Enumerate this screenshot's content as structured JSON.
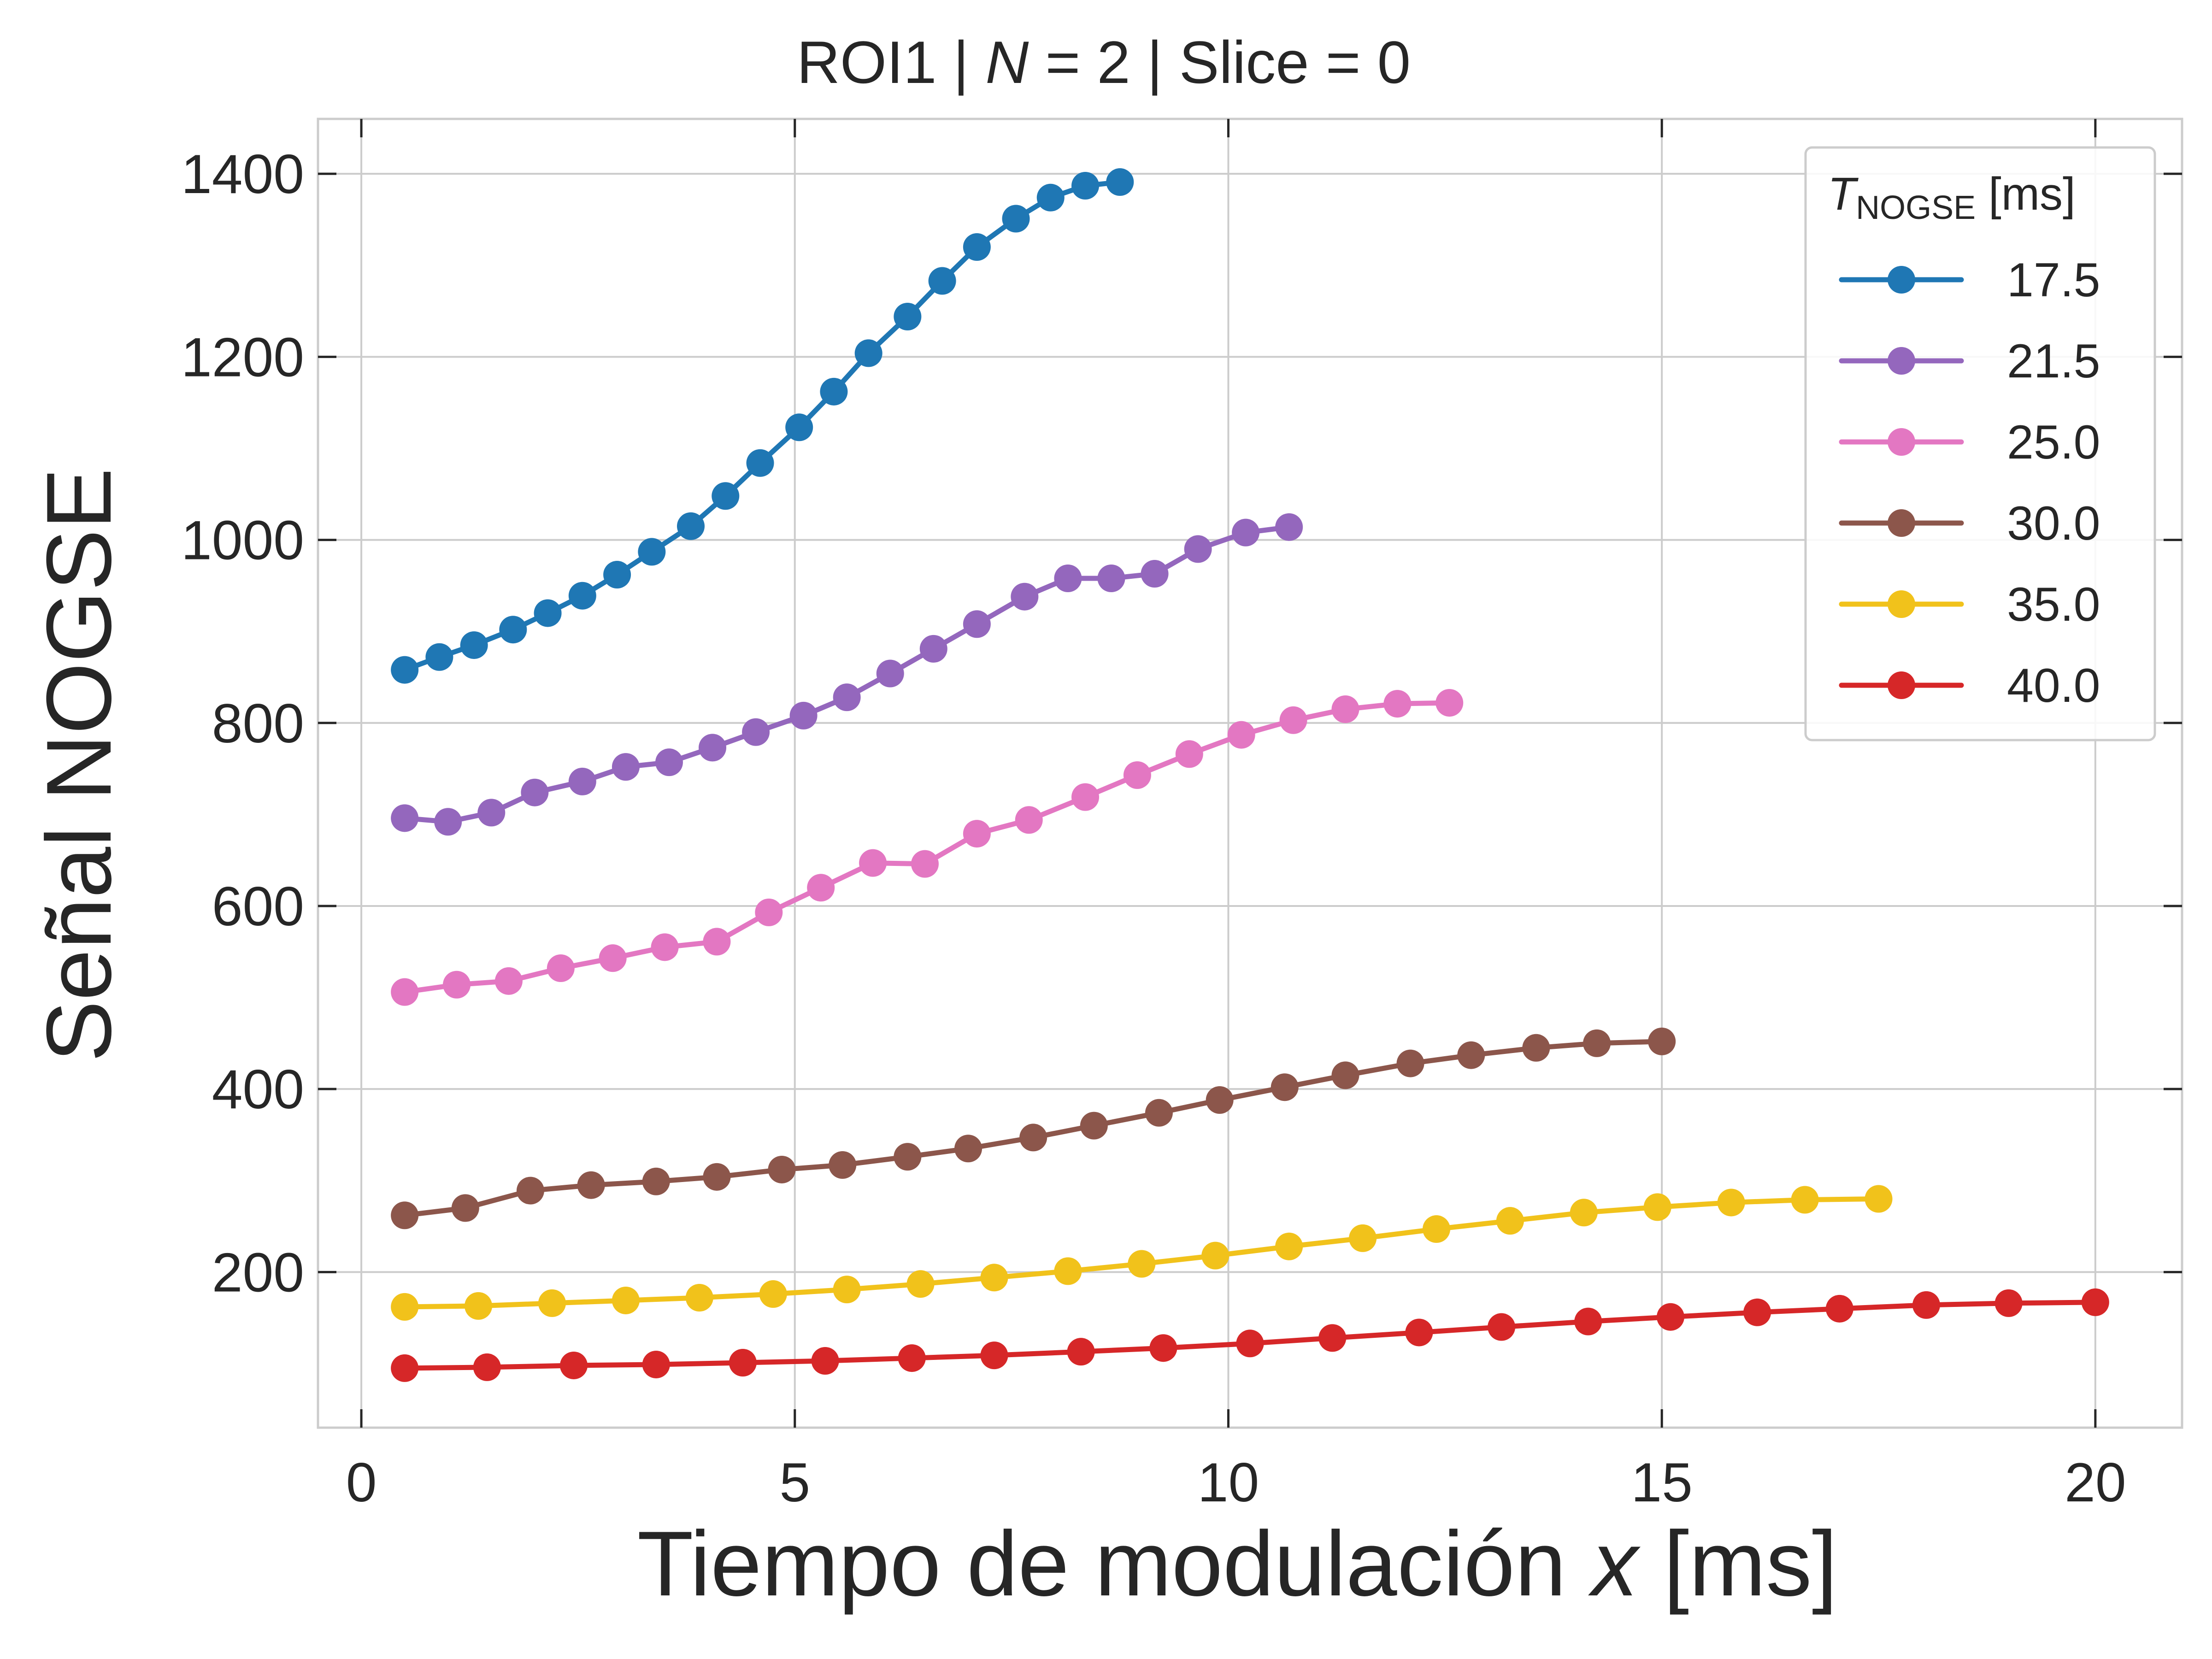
{
  "chart_data": {
    "type": "line",
    "title": {
      "prefix": "ROI1 | ",
      "italic": "N",
      "suffix": " = 2 | Slice = 0"
    },
    "xlabel": {
      "prefix": "Tiempo de modulación ",
      "italic": "x",
      "suffix": " [ms]"
    },
    "ylabel": "Señal NOGSE",
    "xlim": [
      -0.5,
      21.0
    ],
    "ylim": [
      30,
      1460
    ],
    "xticks": [
      0,
      5,
      10,
      15,
      20
    ],
    "yticks": [
      200,
      400,
      600,
      800,
      1000,
      1200,
      1400
    ],
    "grid": true,
    "legend": {
      "title_main": "T",
      "title_sub": "NOGSE",
      "title_unit": " [ms]",
      "placement": "top-right"
    },
    "series": [
      {
        "name": "17.5",
        "color": "#1f77b4",
        "x": [
          0.5,
          0.9,
          1.3,
          1.75,
          2.15,
          2.55,
          2.95,
          3.35,
          3.8,
          4.2,
          4.6,
          5.05,
          5.45,
          5.85,
          6.3,
          6.7,
          7.1,
          7.55,
          7.95,
          8.35,
          8.75
        ],
        "y": [
          858,
          872,
          885,
          902,
          920,
          939,
          962,
          987,
          1015,
          1048,
          1084,
          1123,
          1162,
          1204,
          1244,
          1283,
          1320,
          1351,
          1374,
          1387,
          1391
        ]
      },
      {
        "name": "21.5",
        "color": "#9467bd",
        "x": [
          0.5,
          1.0,
          1.5,
          2.0,
          2.55,
          3.05,
          3.55,
          4.05,
          4.55,
          5.1,
          5.6,
          6.1,
          6.6,
          7.1,
          7.65,
          8.15,
          8.65,
          9.15,
          9.65,
          10.2,
          10.7
        ],
        "y": [
          696,
          692,
          702,
          724,
          736,
          752,
          757,
          773,
          790,
          808,
          828,
          854,
          881,
          908,
          938,
          958,
          958,
          963,
          990,
          1008,
          1014
        ]
      },
      {
        "name": "25.0",
        "color": "#e377c2",
        "x": [
          0.5,
          1.1,
          1.7,
          2.3,
          2.9,
          3.5,
          4.1,
          4.7,
          5.3,
          5.9,
          6.5,
          7.1,
          7.7,
          8.35,
          8.95,
          9.55,
          10.15,
          10.75,
          11.35,
          11.95,
          12.55
        ],
        "y": [
          506,
          514,
          518,
          532,
          543,
          555,
          561,
          593,
          620,
          647,
          646,
          679,
          694,
          719,
          743,
          766,
          787,
          803,
          815,
          821,
          822
        ]
      },
      {
        "name": "30.0",
        "color": "#8c564b",
        "x": [
          0.5,
          1.2,
          1.95,
          2.65,
          3.4,
          4.1,
          4.85,
          5.55,
          6.3,
          7.0,
          7.75,
          8.45,
          9.2,
          9.9,
          10.65,
          11.35,
          12.1,
          12.8,
          13.55,
          14.25,
          15.0
        ],
        "y": [
          262,
          270,
          289,
          295,
          299,
          304,
          312,
          317,
          326,
          335,
          347,
          360,
          374,
          388,
          402,
          415,
          428,
          437,
          445,
          450,
          452
        ]
      },
      {
        "name": "35.0",
        "color": "#f1c21b",
        "x": [
          0.5,
          1.35,
          2.2,
          3.05,
          3.9,
          4.75,
          5.6,
          6.45,
          7.3,
          8.15,
          9.0,
          9.85,
          10.7,
          11.55,
          12.4,
          13.25,
          14.1,
          14.95,
          15.8,
          16.65,
          17.5
        ],
        "y": [
          162,
          163,
          166,
          169,
          172,
          176,
          181,
          187,
          194,
          201,
          209,
          218,
          228,
          237,
          247,
          256,
          265,
          271,
          276,
          279,
          280
        ]
      },
      {
        "name": "40.0",
        "color": "#d62728",
        "x": [
          0.5,
          1.45,
          2.45,
          3.4,
          4.4,
          5.35,
          6.35,
          7.3,
          8.3,
          9.25,
          10.25,
          11.2,
          12.2,
          13.15,
          14.15,
          15.1,
          16.1,
          17.05,
          18.05,
          19.0,
          20.0
        ],
        "y": [
          95,
          96,
          98,
          99,
          101,
          103,
          106,
          109,
          113,
          117,
          122,
          128,
          134,
          140,
          146,
          151,
          156,
          160,
          164,
          166,
          167
        ]
      }
    ]
  }
}
